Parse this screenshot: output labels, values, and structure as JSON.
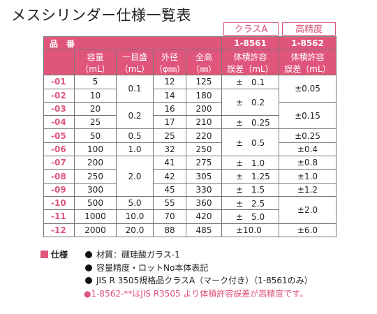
{
  "title": "メスシリンダー仕様一覧表",
  "class_headers": [
    "クラスA",
    "高精度"
  ],
  "catalog_numbers": [
    "1-8561",
    "1-8562"
  ],
  "header": {
    "hinban": "品　番",
    "capacity": "容量",
    "capacity_unit": "（mL）",
    "scale": "一目盛",
    "scale_unit": "（mL）",
    "outer_dia": "外径",
    "outer_dia_unit": "（φ㎜）",
    "height": "全高",
    "height_unit": "（㎜）",
    "tol": "体積許容",
    "tol_unit": "誤差（mL）"
  },
  "rows": [
    {
      "code": "-01",
      "cap": "5",
      "od": "12",
      "h": "125"
    },
    {
      "code": "-02",
      "cap": "10",
      "od": "14",
      "h": "180"
    },
    {
      "code": "-03",
      "cap": "20",
      "od": "16",
      "h": "200"
    },
    {
      "code": "-04",
      "cap": "25",
      "od": "17",
      "h": "210"
    },
    {
      "code": "-05",
      "cap": "50",
      "od": "25",
      "h": "220"
    },
    {
      "code": "-06",
      "cap": "100",
      "od": "32",
      "h": "250"
    },
    {
      "code": "-07",
      "cap": "200",
      "od": "41",
      "h": "275"
    },
    {
      "code": "-08",
      "cap": "250",
      "od": "42",
      "h": "305"
    },
    {
      "code": "-09",
      "cap": "300",
      "od": "45",
      "h": "330"
    },
    {
      "code": "-10",
      "cap": "500",
      "od": "55",
      "h": "360"
    },
    {
      "code": "-11",
      "cap": "1000",
      "od": "70",
      "h": "420"
    },
    {
      "code": "-12",
      "cap": "2000",
      "od": "88",
      "h": "485"
    }
  ],
  "scale_vals": [
    "0.1",
    "0.2",
    "0.5",
    "1.0",
    "2.0",
    "5.0",
    "10.0",
    "20.0"
  ],
  "tolA": [
    "±　0.1",
    "±　0.2",
    "±　0.25",
    "±　0.5",
    "±　1.0",
    "±　1.25",
    "±　1.5",
    "±　2.5",
    "±　5.0",
    "±10.0"
  ],
  "tolB": [
    "±0.05",
    "±0.15",
    "±0.25",
    "±0.4",
    "±0.8",
    "±1.0",
    "±1.2",
    "±2.0",
    "±6.0"
  ],
  "notes": {
    "label": "仕様",
    "lines": [
      "材質：硼珪酸ガラス-1",
      "容量精度・ロットNo本体表記",
      "JIS R 3505規格品クラスA（マーク付き）（1-8561のみ）"
    ],
    "pink_line": "●1-8562-**はJIS R3505 より体積許容誤差が高精度です。"
  }
}
